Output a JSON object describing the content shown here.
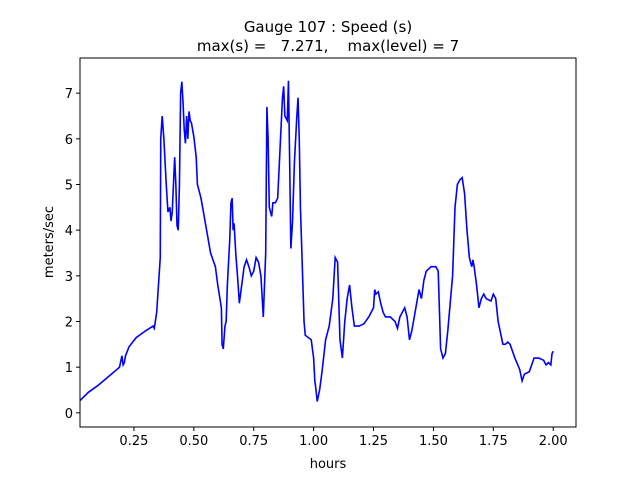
{
  "chart_data": {
    "type": "line",
    "title": [
      "Gauge 107 : Speed (s)",
      "max(s) =   7.271,    max(level) = 7"
    ],
    "xlabel": "hours",
    "ylabel": "meters/sec",
    "xlim": [
      0.025,
      2.095
    ],
    "ylim": [
      -0.31,
      7.77
    ],
    "xticks": [
      0.25,
      {
        "value": 0.5,
        "label": "0.50"
      },
      0.75,
      {
        "value": 1.0,
        "label": "1.00"
      },
      1.25,
      {
        "value": 1.5,
        "label": "1.50"
      },
      1.75,
      {
        "value": 2.0,
        "label": "2.00"
      }
    ],
    "yticks": [
      0,
      1,
      2,
      3,
      4,
      5,
      6,
      7
    ],
    "series": [
      {
        "color": "#0000ff",
        "x": [
          0.025,
          0.06,
          0.1,
          0.15,
          0.19,
          0.2,
          0.205,
          0.21,
          0.215,
          0.23,
          0.26,
          0.3,
          0.33,
          0.335,
          0.345,
          0.355,
          0.36,
          0.362,
          0.368,
          0.375,
          0.385,
          0.392,
          0.4,
          0.405,
          0.41,
          0.42,
          0.425,
          0.43,
          0.435,
          0.44,
          0.445,
          0.45,
          0.455,
          0.46,
          0.465,
          0.47,
          0.475,
          0.48,
          0.485,
          0.49,
          0.495,
          0.5,
          0.51,
          0.515,
          0.53,
          0.55,
          0.57,
          0.59,
          0.6,
          0.615,
          0.618,
          0.623,
          0.63,
          0.635,
          0.64,
          0.65,
          0.655,
          0.66,
          0.664,
          0.668,
          0.675,
          0.685,
          0.69,
          0.7,
          0.71,
          0.72,
          0.73,
          0.74,
          0.75,
          0.76,
          0.77,
          0.78,
          0.79,
          0.8,
          0.805,
          0.81,
          0.815,
          0.825,
          0.83,
          0.84,
          0.85,
          0.86,
          0.87,
          0.875,
          0.88,
          0.89,
          0.895,
          0.9,
          0.905,
          0.912,
          0.92,
          0.93,
          0.935,
          0.94,
          0.945,
          0.96,
          0.965,
          0.99,
          1.0,
          1.005,
          1.01,
          1.015,
          1.025,
          1.035,
          1.05,
          1.065,
          1.08,
          1.09,
          1.1,
          1.11,
          1.12,
          1.13,
          1.14,
          1.15,
          1.16,
          1.17,
          1.19,
          1.21,
          1.23,
          1.24,
          1.25,
          1.255,
          1.26,
          1.27,
          1.28,
          1.29,
          1.3,
          1.32,
          1.34,
          1.35,
          1.36,
          1.38,
          1.39,
          1.4,
          1.41,
          1.43,
          1.44,
          1.45,
          1.46,
          1.47,
          1.49,
          1.51,
          1.52,
          1.53,
          1.54,
          1.55,
          1.56,
          1.58,
          1.59,
          1.6,
          1.61,
          1.62,
          1.63,
          1.64,
          1.65,
          1.66,
          1.665,
          1.67,
          1.68,
          1.69,
          1.7,
          1.71,
          1.72,
          1.74,
          1.75,
          1.76,
          1.77,
          1.79,
          1.8,
          1.81,
          1.82,
          1.84,
          1.86,
          1.87,
          1.88,
          1.9,
          1.91,
          1.92,
          1.94,
          1.96,
          1.97,
          1.98,
          1.99,
          1.995,
          2.0
        ],
        "values": [
          0.27,
          0.45,
          0.6,
          0.82,
          1.0,
          1.25,
          1.05,
          1.1,
          1.25,
          1.45,
          1.65,
          1.8,
          1.9,
          1.85,
          2.2,
          3.0,
          3.4,
          6.0,
          6.5,
          6.0,
          5.0,
          4.4,
          4.5,
          4.2,
          4.4,
          5.6,
          5.0,
          4.1,
          4.0,
          5.0,
          7.0,
          7.25,
          6.8,
          6.2,
          5.9,
          6.5,
          6.0,
          6.6,
          6.4,
          6.35,
          6.2,
          6.05,
          5.6,
          5.0,
          4.7,
          4.1,
          3.5,
          3.2,
          2.8,
          2.3,
          1.5,
          1.4,
          1.9,
          2.0,
          2.8,
          3.8,
          4.6,
          4.7,
          4.0,
          4.15,
          3.5,
          2.8,
          2.4,
          2.8,
          3.2,
          3.35,
          3.2,
          3.0,
          3.1,
          3.4,
          3.3,
          3.0,
          2.1,
          3.5,
          6.7,
          6.0,
          4.5,
          4.3,
          4.6,
          4.6,
          4.7,
          5.8,
          6.9,
          7.15,
          6.5,
          6.4,
          7.271,
          5.5,
          3.6,
          4.2,
          5.5,
          6.5,
          6.9,
          6.0,
          4.5,
          2.0,
          1.7,
          1.6,
          1.2,
          0.7,
          0.5,
          0.25,
          0.5,
          0.9,
          1.6,
          1.9,
          2.5,
          3.4,
          3.3,
          1.6,
          1.2,
          2.0,
          2.5,
          2.8,
          2.3,
          1.9,
          1.9,
          1.95,
          2.1,
          2.2,
          2.3,
          2.7,
          2.6,
          2.65,
          2.4,
          2.2,
          2.1,
          2.1,
          2.0,
          1.85,
          2.1,
          2.3,
          2.1,
          1.6,
          1.8,
          2.4,
          2.7,
          2.5,
          2.9,
          3.1,
          3.2,
          3.2,
          3.1,
          1.4,
          1.2,
          1.3,
          1.8,
          3.0,
          4.5,
          5.0,
          5.1,
          5.15,
          4.8,
          4.0,
          3.4,
          3.2,
          3.35,
          3.2,
          2.8,
          2.3,
          2.5,
          2.6,
          2.5,
          2.45,
          2.6,
          2.5,
          2.0,
          1.5,
          1.5,
          1.55,
          1.5,
          1.2,
          0.95,
          0.7,
          0.85,
          0.9,
          1.05,
          1.2,
          1.2,
          1.15,
          1.05,
          1.1,
          1.05,
          1.3,
          1.35
        ]
      }
    ]
  }
}
